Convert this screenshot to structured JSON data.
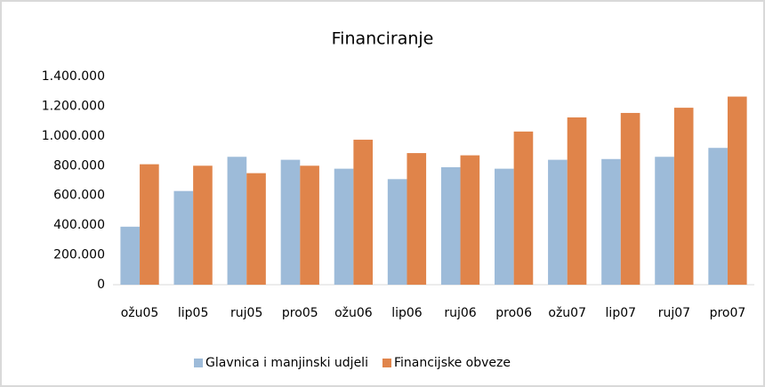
{
  "chart_data": {
    "type": "bar",
    "title": "Financiranje",
    "categories": [
      "ožu05",
      "lip05",
      "ruj05",
      "pro05",
      "ožu06",
      "lip06",
      "ruj06",
      "pro06",
      "ožu07",
      "lip07",
      "ruj07",
      "pro07"
    ],
    "series": [
      {
        "name": "Glavnica i manjinski udjeli",
        "color": "#9dbbd9",
        "values": [
          390000,
          630000,
          860000,
          840000,
          780000,
          710000,
          790000,
          780000,
          840000,
          845000,
          860000,
          920000
        ]
      },
      {
        "name": "Financijske obveze",
        "color": "#e0844a",
        "values": [
          810000,
          800000,
          750000,
          800000,
          975000,
          885000,
          870000,
          1030000,
          1125000,
          1155000,
          1190000,
          1265000
        ]
      }
    ],
    "ylim": [
      0,
      1400000
    ],
    "yticks": [
      0,
      {
        "value": 200000,
        "label": "200.000"
      },
      {
        "value": 400000,
        "label": "400.000"
      },
      {
        "value": 600000,
        "label": "600.000"
      },
      {
        "value": 800000,
        "label": "800.000"
      },
      {
        "value": 1000000,
        "label": "1.000.000"
      },
      {
        "value": 1200000,
        "label": "1.200.000"
      },
      {
        "value": 1400000,
        "label": "1.400.000"
      }
    ],
    "grid": false,
    "legend": "bottom"
  }
}
